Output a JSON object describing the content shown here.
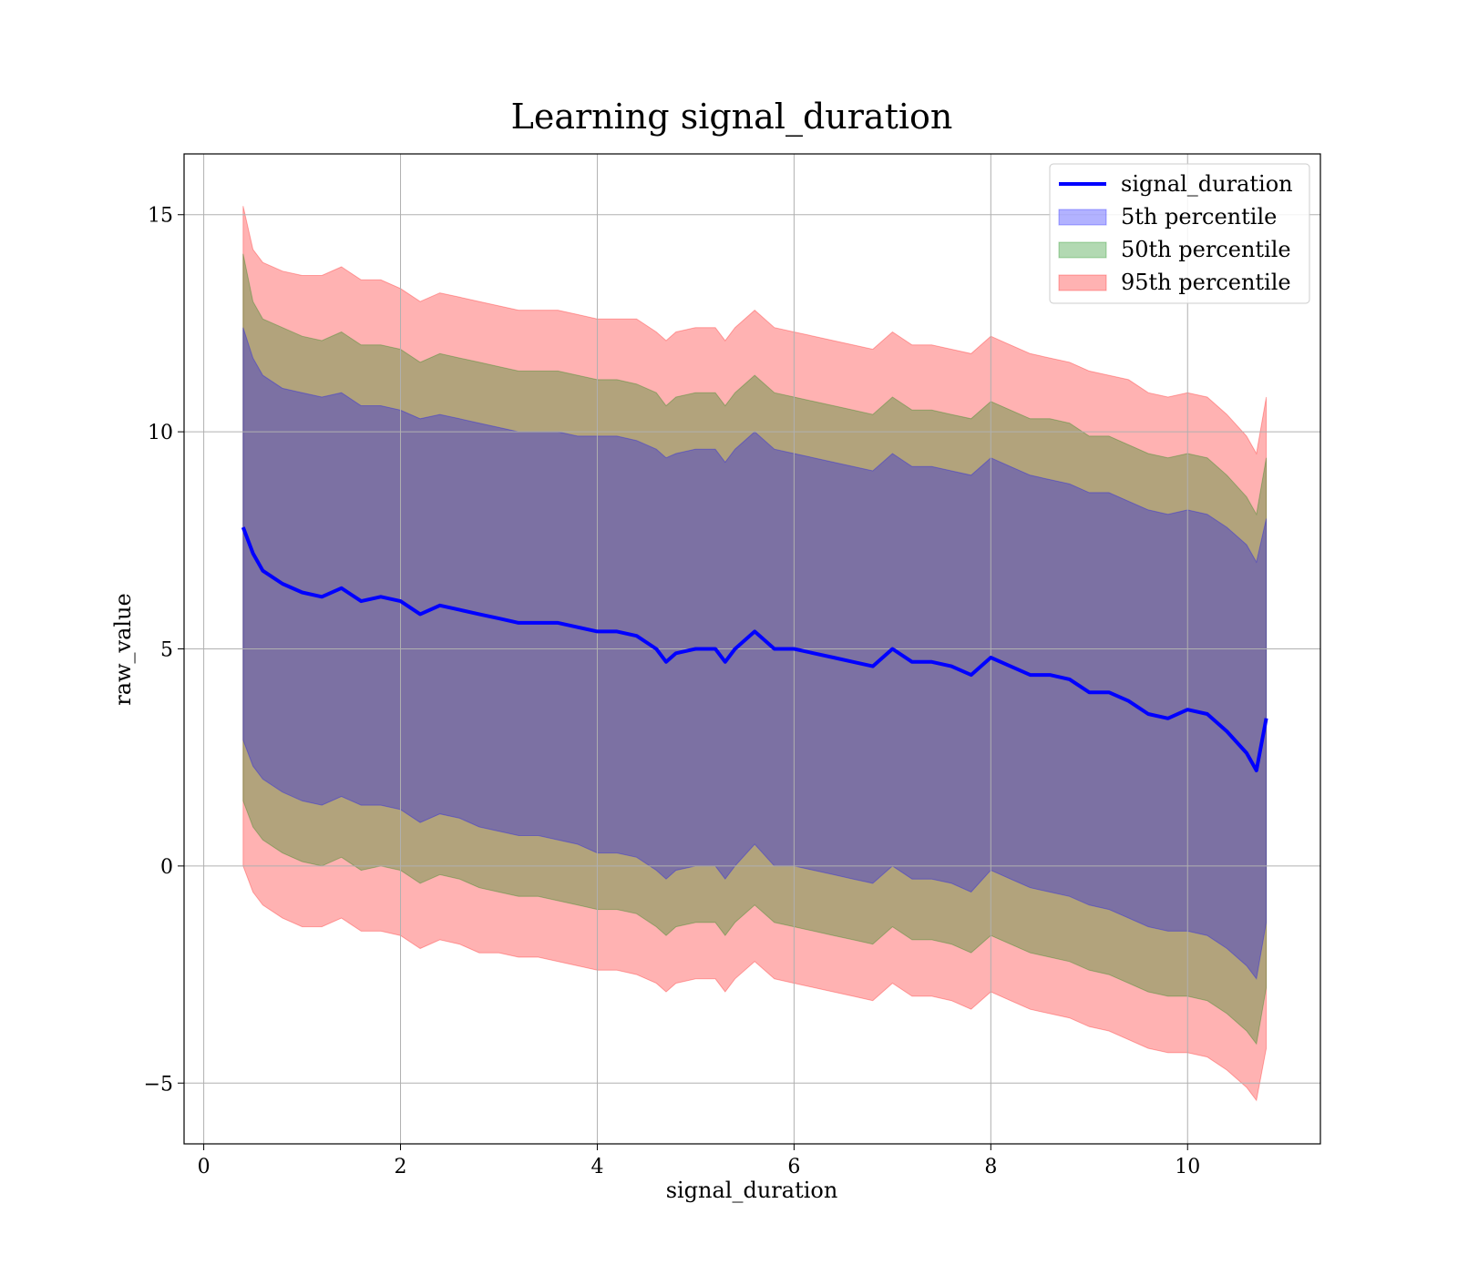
{
  "chart_data": {
    "type": "area",
    "title": "Learning signal_duration",
    "xlabel": "signal_duration",
    "ylabel": "raw_value",
    "xlim": [
      -0.2,
      11.35
    ],
    "ylim": [
      -6.4,
      16.4
    ],
    "xticks": [
      0,
      2,
      4,
      6,
      8,
      10
    ],
    "yticks": [
      -5,
      0,
      5,
      10,
      15
    ],
    "xtick_labels": [
      "0",
      "2",
      "4",
      "6",
      "8",
      "10"
    ],
    "ytick_labels": [
      "−5",
      "0",
      "5",
      "10",
      "15"
    ],
    "grid": true,
    "legend_position": "top-right",
    "x": [
      0.4,
      0.5,
      0.6,
      0.8,
      1.0,
      1.2,
      1.4,
      1.6,
      1.8,
      2.0,
      2.2,
      2.4,
      2.6,
      2.8,
      3.0,
      3.2,
      3.4,
      3.6,
      3.8,
      4.0,
      4.2,
      4.4,
      4.6,
      4.7,
      4.8,
      5.0,
      5.2,
      5.3,
      5.4,
      5.6,
      5.8,
      6.0,
      6.2,
      6.4,
      6.6,
      6.8,
      7.0,
      7.2,
      7.4,
      7.6,
      7.8,
      8.0,
      8.2,
      8.4,
      8.6,
      8.8,
      9.0,
      9.2,
      9.4,
      9.6,
      9.8,
      10.0,
      10.2,
      10.4,
      10.6,
      10.7,
      10.8
    ],
    "series": [
      {
        "name": "signal_duration",
        "kind": "line",
        "color": "#0000ff",
        "values": [
          7.8,
          7.2,
          6.8,
          6.5,
          6.3,
          6.2,
          6.4,
          6.1,
          6.2,
          6.1,
          5.8,
          6.0,
          5.9,
          5.8,
          5.7,
          5.6,
          5.6,
          5.6,
          5.5,
          5.4,
          5.4,
          5.3,
          5.0,
          4.7,
          4.9,
          5.0,
          5.0,
          4.7,
          5.0,
          5.4,
          5.0,
          5.0,
          4.9,
          4.8,
          4.7,
          4.6,
          5.0,
          4.7,
          4.7,
          4.6,
          4.4,
          4.8,
          4.6,
          4.4,
          4.4,
          4.3,
          4.0,
          4.0,
          3.8,
          3.5,
          3.4,
          3.6,
          3.5,
          3.1,
          2.6,
          2.2,
          3.4
        ]
      },
      {
        "name": "5th percentile",
        "kind": "band",
        "color": "#0000ff",
        "upper": [
          12.4,
          11.7,
          11.3,
          11.0,
          10.9,
          10.8,
          10.9,
          10.6,
          10.6,
          10.5,
          10.3,
          10.4,
          10.3,
          10.2,
          10.1,
          10.0,
          10.0,
          10.0,
          9.9,
          9.9,
          9.9,
          9.8,
          9.6,
          9.4,
          9.5,
          9.6,
          9.6,
          9.3,
          9.6,
          10.0,
          9.6,
          9.5,
          9.4,
          9.3,
          9.2,
          9.1,
          9.5,
          9.2,
          9.2,
          9.1,
          9.0,
          9.4,
          9.2,
          9.0,
          8.9,
          8.8,
          8.6,
          8.6,
          8.4,
          8.2,
          8.1,
          8.2,
          8.1,
          7.8,
          7.4,
          7.0,
          8.0
        ],
        "lower": [
          2.9,
          2.3,
          2.0,
          1.7,
          1.5,
          1.4,
          1.6,
          1.4,
          1.4,
          1.3,
          1.0,
          1.2,
          1.1,
          0.9,
          0.8,
          0.7,
          0.7,
          0.6,
          0.5,
          0.3,
          0.3,
          0.2,
          -0.1,
          -0.3,
          -0.1,
          0.0,
          0.0,
          -0.3,
          0.0,
          0.5,
          0.0,
          0.0,
          -0.1,
          -0.2,
          -0.3,
          -0.4,
          0.0,
          -0.3,
          -0.3,
          -0.4,
          -0.6,
          -0.1,
          -0.3,
          -0.5,
          -0.6,
          -0.7,
          -0.9,
          -1.0,
          -1.2,
          -1.4,
          -1.5,
          -1.5,
          -1.6,
          -1.9,
          -2.3,
          -2.6,
          -1.3
        ]
      },
      {
        "name": "50th percentile",
        "kind": "band",
        "color": "#008000",
        "upper": [
          14.1,
          13.0,
          12.6,
          12.4,
          12.2,
          12.1,
          12.3,
          12.0,
          12.0,
          11.9,
          11.6,
          11.8,
          11.7,
          11.6,
          11.5,
          11.4,
          11.4,
          11.4,
          11.3,
          11.2,
          11.2,
          11.1,
          10.9,
          10.6,
          10.8,
          10.9,
          10.9,
          10.6,
          10.9,
          11.3,
          10.9,
          10.8,
          10.7,
          10.6,
          10.5,
          10.4,
          10.8,
          10.5,
          10.5,
          10.4,
          10.3,
          10.7,
          10.5,
          10.3,
          10.3,
          10.2,
          9.9,
          9.9,
          9.7,
          9.5,
          9.4,
          9.5,
          9.4,
          9.0,
          8.5,
          8.1,
          9.4
        ],
        "lower": [
          1.5,
          0.9,
          0.6,
          0.3,
          0.1,
          0.0,
          0.2,
          -0.1,
          0.0,
          -0.1,
          -0.4,
          -0.2,
          -0.3,
          -0.5,
          -0.6,
          -0.7,
          -0.7,
          -0.8,
          -0.9,
          -1.0,
          -1.0,
          -1.1,
          -1.4,
          -1.6,
          -1.4,
          -1.3,
          -1.3,
          -1.6,
          -1.3,
          -0.9,
          -1.3,
          -1.4,
          -1.5,
          -1.6,
          -1.7,
          -1.8,
          -1.4,
          -1.7,
          -1.7,
          -1.8,
          -2.0,
          -1.6,
          -1.8,
          -2.0,
          -2.1,
          -2.2,
          -2.4,
          -2.5,
          -2.7,
          -2.9,
          -3.0,
          -3.0,
          -3.1,
          -3.4,
          -3.8,
          -4.1,
          -2.8
        ]
      },
      {
        "name": "95th percentile",
        "kind": "band",
        "color": "#ff0000",
        "upper": [
          15.2,
          14.2,
          13.9,
          13.7,
          13.6,
          13.6,
          13.8,
          13.5,
          13.5,
          13.3,
          13.0,
          13.2,
          13.1,
          13.0,
          12.9,
          12.8,
          12.8,
          12.8,
          12.7,
          12.6,
          12.6,
          12.6,
          12.3,
          12.1,
          12.3,
          12.4,
          12.4,
          12.1,
          12.4,
          12.8,
          12.4,
          12.3,
          12.2,
          12.1,
          12.0,
          11.9,
          12.3,
          12.0,
          12.0,
          11.9,
          11.8,
          12.2,
          12.0,
          11.8,
          11.7,
          11.6,
          11.4,
          11.3,
          11.2,
          10.9,
          10.8,
          10.9,
          10.8,
          10.4,
          9.9,
          9.5,
          10.8
        ],
        "lower": [
          0.0,
          -0.6,
          -0.9,
          -1.2,
          -1.4,
          -1.4,
          -1.2,
          -1.5,
          -1.5,
          -1.6,
          -1.9,
          -1.7,
          -1.8,
          -2.0,
          -2.0,
          -2.1,
          -2.1,
          -2.2,
          -2.3,
          -2.4,
          -2.4,
          -2.5,
          -2.7,
          -2.9,
          -2.7,
          -2.6,
          -2.6,
          -2.9,
          -2.6,
          -2.2,
          -2.6,
          -2.7,
          -2.8,
          -2.9,
          -3.0,
          -3.1,
          -2.7,
          -3.0,
          -3.0,
          -3.1,
          -3.3,
          -2.9,
          -3.1,
          -3.3,
          -3.4,
          -3.5,
          -3.7,
          -3.8,
          -4.0,
          -4.2,
          -4.3,
          -4.3,
          -4.4,
          -4.7,
          -5.1,
          -5.4,
          -4.2
        ]
      }
    ]
  }
}
